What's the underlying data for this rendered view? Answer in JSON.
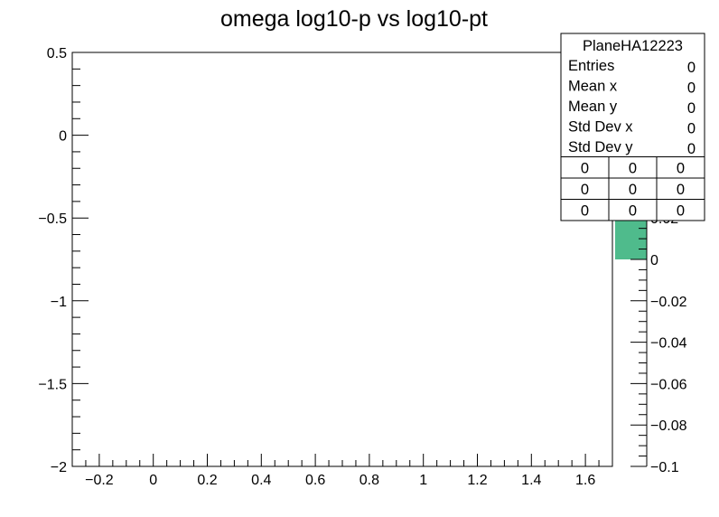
{
  "chart_data": {
    "type": "heatmap",
    "title": "omega  log10-p vs log10-pt",
    "xlabel": "",
    "ylabel": "",
    "xlim": [
      -0.3,
      1.7
    ],
    "ylim": [
      -2,
      0.5
    ],
    "x_ticks": [
      "−0.2",
      "0",
      "0.2",
      "0.4",
      "0.6",
      "0.8",
      "1",
      "1.2",
      "1.4",
      "1.6"
    ],
    "x_tick_values": [
      -0.2,
      0,
      0.2,
      0.4,
      0.6,
      0.8,
      1.0,
      1.2,
      1.4,
      1.6
    ],
    "y_ticks": [
      "0.5",
      "0",
      "−0.5",
      "−1",
      "−1.5",
      "−2"
    ],
    "y_tick_values": [
      0.5,
      0,
      -0.5,
      -1,
      -1.5,
      -2
    ],
    "points": [],
    "colorbar": {
      "zlim": [
        -0.1,
        0.1
      ],
      "ticks": [
        "−0.1",
        "−0.08",
        "−0.06",
        "−0.04",
        "−0.02",
        "0",
        "0.02"
      ],
      "tick_values": [
        -0.1,
        -0.08,
        -0.06,
        -0.04,
        -0.02,
        0,
        0.02
      ],
      "filled_range": [
        0,
        0.1
      ],
      "color": "#4fbb8c"
    },
    "stats_box": {
      "name": "PlaneHA12223",
      "rows": [
        {
          "label": "Entries",
          "value": "0"
        },
        {
          "label": "Mean x",
          "value": "0"
        },
        {
          "label": "Mean y",
          "value": "0"
        },
        {
          "label": "Std Dev x",
          "value": "0"
        },
        {
          "label": "Std Dev y",
          "value": "0"
        }
      ],
      "grid": [
        [
          "0",
          "0",
          "0"
        ],
        [
          "0",
          "0",
          "0"
        ],
        [
          "0",
          "0",
          "0"
        ]
      ]
    }
  }
}
